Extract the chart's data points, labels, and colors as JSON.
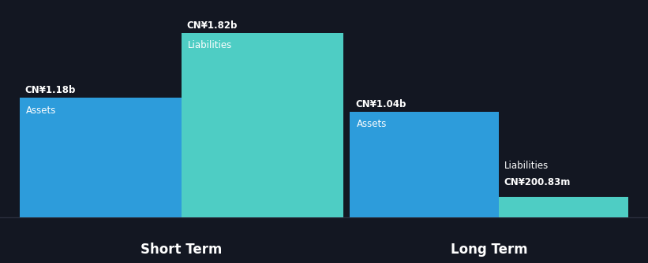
{
  "background_color": "#131722",
  "bar_color_assets": "#2D9CDB",
  "bar_color_liabilities": "#4ECDC4",
  "text_color": "#FFFFFF",
  "groups": [
    "Short Term",
    "Long Term"
  ],
  "short_term": {
    "assets_value": 1.18,
    "assets_label": "CN¥1.18b",
    "assets_text": "Assets",
    "liabilities_value": 1.82,
    "liabilities_label": "CN¥1.82b",
    "liabilities_text": "Liabilities"
  },
  "long_term": {
    "assets_value": 1.04,
    "assets_label": "CN¥1.04b",
    "assets_text": "Assets",
    "liabilities_value": 0.20083,
    "liabilities_label": "CN¥200.83m",
    "liabilities_text": "Liabilities"
  },
  "max_value": 1.82,
  "group_label_fontsize": 12,
  "bar_label_fontsize": 8.5,
  "value_label_fontsize": 8.5,
  "bottom_line_color": "#2a2f3e"
}
